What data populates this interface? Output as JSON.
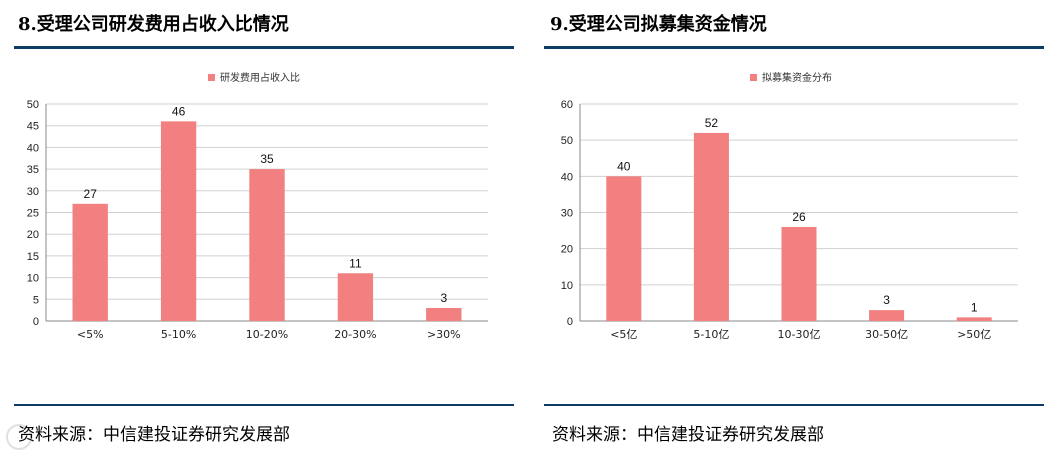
{
  "panels": [
    {
      "title": "8.受理公司研发费用占收入比情况",
      "source": "资料来源：中信建投证券研究发展部",
      "chart_data": {
        "type": "bar",
        "legend": "研发费用占收入比",
        "categories": [
          "<5%",
          "5-10%",
          "10-20%",
          "20-30%",
          ">30%"
        ],
        "values": [
          27,
          46,
          35,
          11,
          3
        ],
        "yticks": [
          0,
          5,
          10,
          15,
          20,
          25,
          30,
          35,
          40,
          45,
          50
        ],
        "ylim": [
          0,
          50
        ],
        "grid": true,
        "legend_position": "top",
        "bar_color": "#f28080"
      }
    },
    {
      "title": "9.受理公司拟募集资金情况",
      "source": "资料来源：中信建投证券研究发展部",
      "chart_data": {
        "type": "bar",
        "legend": "拟募集资金分布",
        "categories": [
          "<5亿",
          "5-10亿",
          "10-30亿",
          "30-50亿",
          ">50亿"
        ],
        "values": [
          40,
          52,
          26,
          3,
          1
        ],
        "yticks": [
          0,
          10,
          20,
          30,
          40,
          50,
          60
        ],
        "ylim": [
          0,
          60
        ],
        "grid": true,
        "legend_position": "top",
        "bar_color": "#f28080"
      }
    }
  ],
  "colors": {
    "rule": "#0d3b66",
    "grid": "#d0d0d0",
    "axis": "#888888"
  }
}
